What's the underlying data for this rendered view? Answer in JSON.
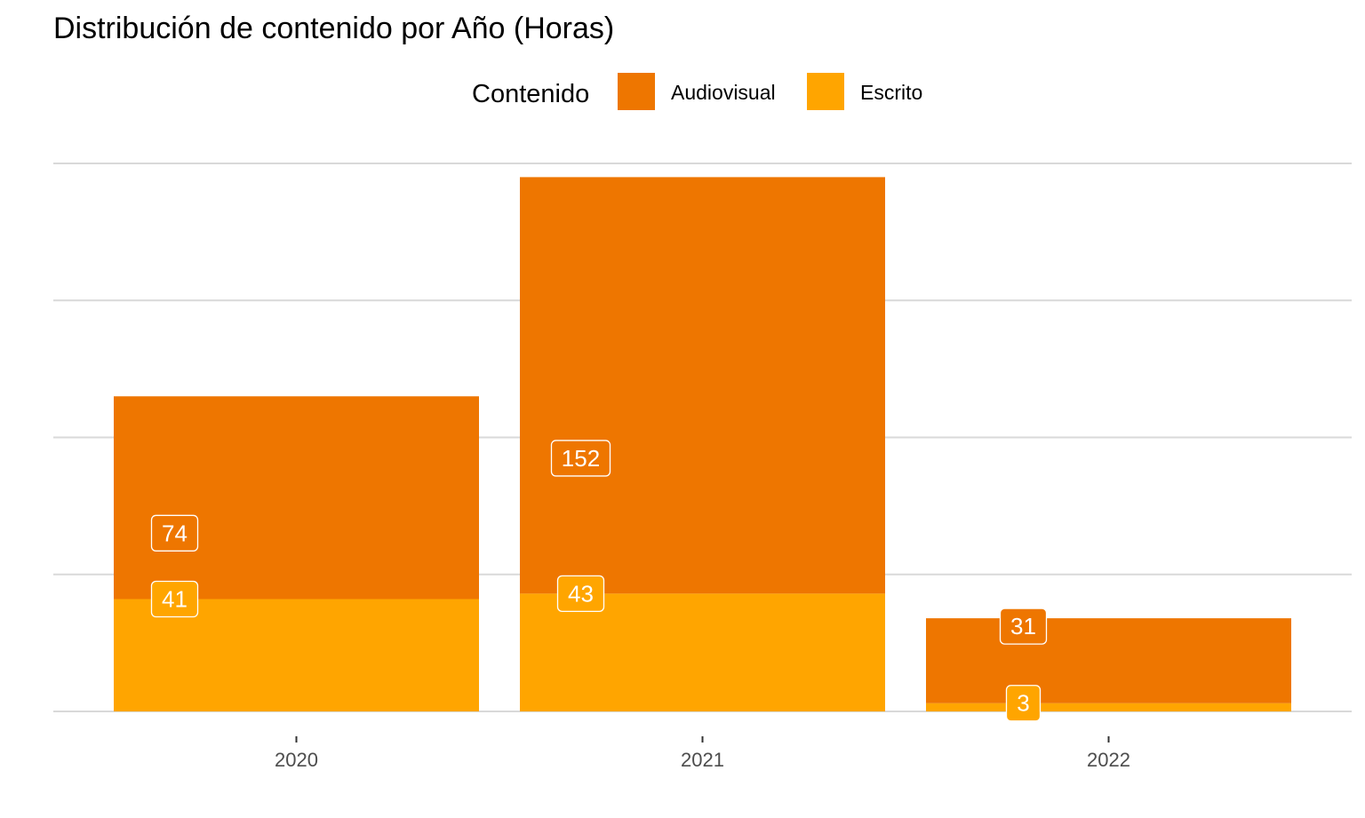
{
  "chart_data": {
    "type": "bar",
    "stacked": true,
    "title": "Distribución de contenido por Año (Horas)",
    "xlabel": "",
    "ylabel": "",
    "categories": [
      "2020",
      "2021",
      "2022"
    ],
    "legend": {
      "title": "Contenido",
      "position": "top"
    },
    "series": [
      {
        "name": "Audiovisual",
        "color": "#EE7600",
        "values": [
          74,
          152,
          31
        ],
        "labels": [
          "74",
          "152",
          "31"
        ]
      },
      {
        "name": "Escrito",
        "color": "#FFA500",
        "values": [
          41,
          43,
          3
        ],
        "labels": [
          "41",
          "43",
          "3"
        ]
      }
    ],
    "ylim": [
      0,
      200
    ],
    "y_gridlines": [
      0,
      50,
      100,
      150,
      200
    ],
    "y_tick_labels_visible": false,
    "grid": true
  }
}
